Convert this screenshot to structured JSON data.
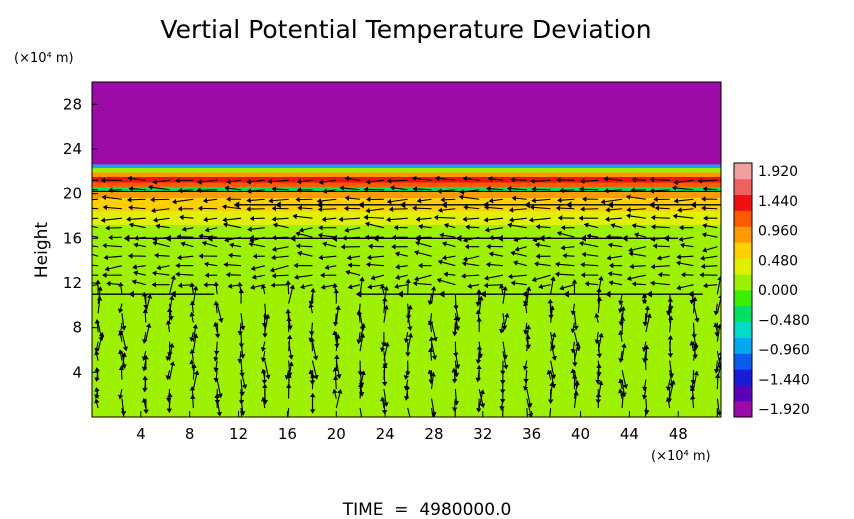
{
  "chart_data": {
    "type": "heatmap",
    "title": "Vertial Potential Temperature Deviation",
    "ylabel": "Height",
    "y_unit_label": "(×10⁴ m)",
    "x_unit_label": "(×10⁴ m)",
    "footer": "TIME  =  4980000.0",
    "xlim": [
      0,
      51.5
    ],
    "ylim": [
      0,
      30
    ],
    "x_ticks": [
      4,
      8,
      12,
      16,
      20,
      24,
      28,
      32,
      36,
      40,
      44,
      48
    ],
    "y_ticks": [
      4,
      8,
      12,
      16,
      20,
      24,
      28
    ],
    "colorbar": {
      "range": [
        -1.92,
        1.92
      ],
      "tick_labels": [
        "1.920",
        "1.440",
        "0.960",
        "0.480",
        "0.000",
        "−0.480",
        "−0.960",
        "−1.440",
        "−1.920"
      ],
      "colors": [
        "#9c0aa8",
        "#5a00b8",
        "#1a1ad8",
        "#0a5cf0",
        "#00aaf0",
        "#00dcc8",
        "#00e060",
        "#3af000",
        "#9cf000",
        "#e0f000",
        "#ffd000",
        "#ff9a00",
        "#ff5a00",
        "#f01010",
        "#f06060",
        "#f0a0a0"
      ]
    },
    "bands": [
      {
        "y0": 22.6,
        "y1": 30,
        "value": -1.92
      },
      {
        "y0": 22.3,
        "y1": 22.6,
        "value": -0.8
      },
      {
        "y0": 21.9,
        "y1": 22.3,
        "value": 0.1
      },
      {
        "y0": 21.5,
        "y1": 21.9,
        "value": 0.9
      },
      {
        "y0": 21.0,
        "y1": 21.5,
        "value": 1.4
      },
      {
        "y0": 20.6,
        "y1": 21.0,
        "value": 1.1
      },
      {
        "y0": 20.2,
        "y1": 20.6,
        "value": -0.3
      },
      {
        "y0": 19.6,
        "y1": 20.2,
        "value": 0.9
      },
      {
        "y0": 18.4,
        "y1": 19.6,
        "value": 0.6
      },
      {
        "y0": 17.2,
        "y1": 18.4,
        "value": 0.35
      },
      {
        "y0": 0,
        "y1": 17.2,
        "value": 0.05
      }
    ]
  }
}
